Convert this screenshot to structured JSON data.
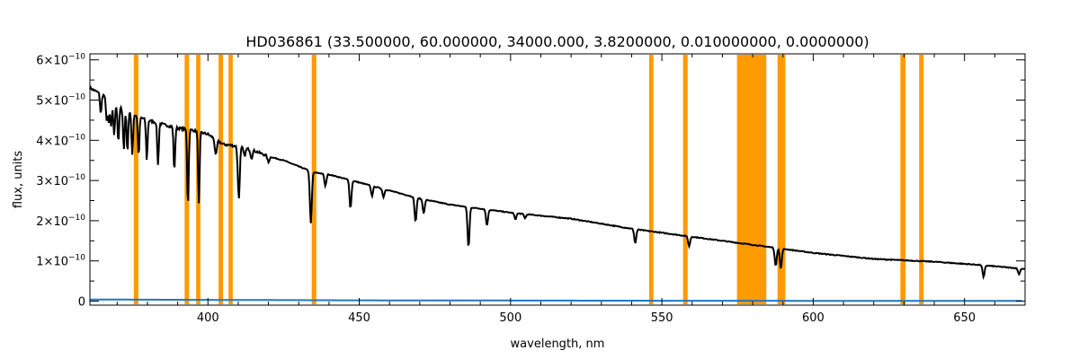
{
  "chart_data": {
    "type": "line",
    "title": "HD036861    (33.500000, 60.000000, 34000.000, 3.8200000, 0.010000000, 0.0000000)",
    "xlabel": "wavelength, nm",
    "ylabel": "flux, units",
    "xlim": [
      361,
      670
    ],
    "ylim": [
      -1e-11,
      6.15e-10
    ],
    "grid": false,
    "legend": "none",
    "x_ticks": [
      {
        "value": 400,
        "label": "400"
      },
      {
        "value": 450,
        "label": "450"
      },
      {
        "value": 500,
        "label": "500"
      },
      {
        "value": 550,
        "label": "550"
      },
      {
        "value": 600,
        "label": "600"
      },
      {
        "value": 650,
        "label": "650"
      }
    ],
    "y_ticks": [
      {
        "value": 0,
        "label": "0",
        "exp": ""
      },
      {
        "value": 1e-10,
        "label": "1×10",
        "exp": "−10"
      },
      {
        "value": 2e-10,
        "label": "2×10",
        "exp": "−10"
      },
      {
        "value": 3e-10,
        "label": "3×10",
        "exp": "−10"
      },
      {
        "value": 4e-10,
        "label": "4×10",
        "exp": "−10"
      },
      {
        "value": 5e-10,
        "label": "5×10",
        "exp": "−10"
      },
      {
        "value": 6e-10,
        "label": "6×10",
        "exp": "−10"
      }
    ],
    "colors": {
      "spectrum": "#000000",
      "error": "#1f77c4",
      "mask": "#ff9a00"
    },
    "masked_regions": [
      [
        375.5,
        377.0
      ],
      [
        392.3,
        393.8
      ],
      [
        396.1,
        397.5
      ],
      [
        403.5,
        405.0
      ],
      [
        406.8,
        408.2
      ],
      [
        434.3,
        435.8
      ],
      [
        545.8,
        547.2
      ],
      [
        557.0,
        558.5
      ],
      [
        574.8,
        584.5
      ],
      [
        588.2,
        590.8
      ],
      [
        628.8,
        630.5
      ],
      [
        635.0,
        636.5
      ]
    ],
    "series": [
      {
        "values": [
          [
            361,
            5.3e-10
          ],
          [
            366,
            5.1e-10
          ],
          [
            370,
            4.85e-10
          ],
          [
            375,
            4.65e-10
          ],
          [
            380,
            4.5e-10
          ],
          [
            385,
            4.4e-10
          ],
          [
            390,
            4.3e-10
          ],
          [
            395,
            4.25e-10
          ],
          [
            400,
            4.15e-10
          ],
          [
            405,
            3.9e-10
          ],
          [
            410,
            3.85e-10
          ],
          [
            415,
            3.75e-10
          ],
          [
            420,
            3.6e-10
          ],
          [
            425,
            3.5e-10
          ],
          [
            430,
            3.35e-10
          ],
          [
            435,
            3.2e-10
          ],
          [
            440,
            3.15e-10
          ],
          [
            450,
            2.95e-10
          ],
          [
            460,
            2.75e-10
          ],
          [
            470,
            2.55e-10
          ],
          [
            480,
            2.4e-10
          ],
          [
            490,
            2.3e-10
          ],
          [
            500,
            2.2e-10
          ],
          [
            520,
            2.05e-10
          ],
          [
            540,
            1.8e-10
          ],
          [
            560,
            1.6e-10
          ],
          [
            575,
            1.45e-10
          ],
          [
            590,
            1.3e-10
          ],
          [
            600,
            1.2e-10
          ],
          [
            620,
            1.05e-10
          ],
          [
            640,
            9.8e-11
          ],
          [
            655,
            9e-11
          ],
          [
            670,
            8e-11
          ]
        ]
      },
      {
        "values": [
          [
            361,
            4e-12
          ],
          [
            450,
            2e-12
          ],
          [
            550,
            1e-12
          ],
          [
            670,
            5e-13
          ]
        ]
      }
    ],
    "absorption_lines": [
      [
        364.6,
        5e-11
      ],
      [
        366.5,
        5.5e-11
      ],
      [
        367.2,
        6e-11
      ],
      [
        368.0,
        6.5e-11
      ],
      [
        369.0,
        8e-11
      ],
      [
        370.4,
        9e-11
      ],
      [
        372.2,
        1e-10
      ],
      [
        373.4,
        1e-10
      ],
      [
        375.0,
        1e-10
      ],
      [
        377.1,
        1e-10
      ],
      [
        379.8,
        1e-10
      ],
      [
        383.5,
        1.05e-10
      ],
      [
        388.9,
        1.1e-10
      ],
      [
        393.4,
        1.9e-10
      ],
      [
        397.0,
        1.8e-10
      ],
      [
        402.6,
        4e-11
      ],
      [
        410.2,
        1.3e-10
      ],
      [
        412.1,
        2e-11
      ],
      [
        414.4,
        2e-11
      ],
      [
        420.0,
        1.5e-11
      ],
      [
        434.0,
        1.3e-10
      ],
      [
        438.8,
        3e-11
      ],
      [
        447.1,
        7e-11
      ],
      [
        454.2,
        2.5e-11
      ],
      [
        458.0,
        2e-11
      ],
      [
        468.6,
        6e-11
      ],
      [
        471.3,
        3.5e-11
      ],
      [
        486.1,
        1e-10
      ],
      [
        492.2,
        4e-11
      ],
      [
        501.6,
        1.5e-11
      ],
      [
        504.8,
        1e-11
      ],
      [
        541.2,
        3.5e-11
      ],
      [
        559.0,
        2.5e-11
      ],
      [
        587.6,
        4.5e-11
      ],
      [
        589.3,
        5e-11
      ],
      [
        656.3,
        3e-11
      ],
      [
        668.0,
        1.5e-11
      ]
    ]
  }
}
